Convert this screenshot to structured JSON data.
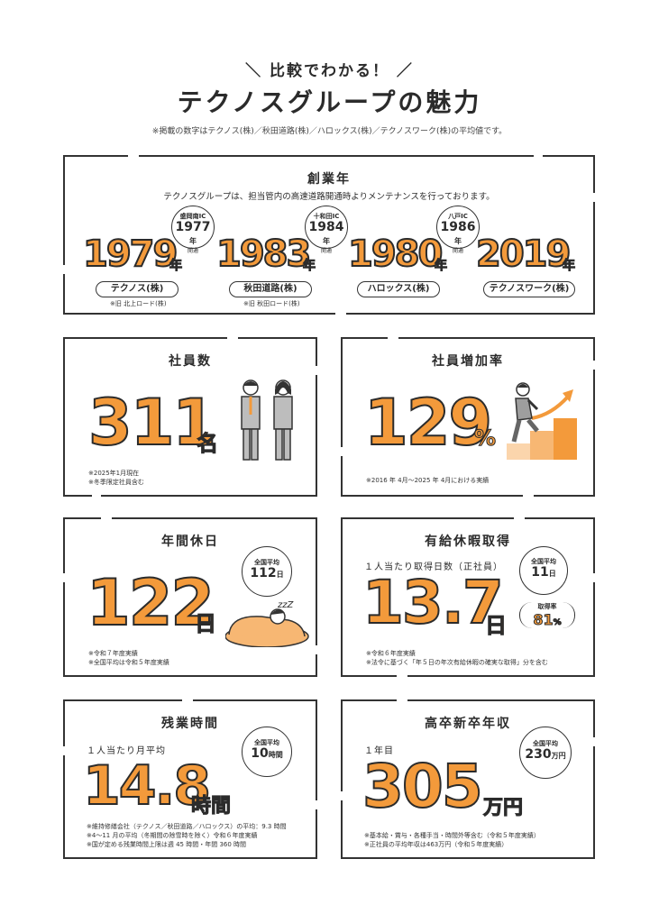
{
  "header": {
    "kicker": "＼ 比較でわかる！ ／",
    "title": "テクノスグループの魅力",
    "note": "※掲載の数字はテクノス(株)／秋田道路(株)／ハロックス(株)／テクノスワーク(株)の平均値です。"
  },
  "founding": {
    "title": "創業年",
    "desc": "テクノスグループは、担当管内の高速道路開通時よりメンテナンスを行っております。",
    "unit": "年",
    "companies": [
      {
        "year": "1979",
        "name": "テクノス(株)",
        "note": "※旧 北上ロード(株)",
        "ic_name": "盛岡南IC",
        "ic_year": "1977",
        "ic_unit": "年",
        "ic_sub": "開通"
      },
      {
        "year": "1983",
        "name": "秋田道路(株)",
        "note": "※旧 秋田ロード(株)",
        "ic_name": "十和田IC",
        "ic_year": "1984",
        "ic_unit": "年",
        "ic_sub": "開通"
      },
      {
        "year": "1980",
        "name": "ハロックス(株)",
        "note": "",
        "ic_name": "八戸IC",
        "ic_year": "1986",
        "ic_unit": "年",
        "ic_sub": "開通"
      },
      {
        "year": "2019",
        "name": "テクノスワーク(株)",
        "note": "",
        "ic_name": "",
        "ic_year": "",
        "ic_unit": "",
        "ic_sub": ""
      }
    ]
  },
  "employees": {
    "title": "社員数",
    "value": "311",
    "unit": "名",
    "notes": [
      "※2025年1月現在",
      "※冬季限定社員含む"
    ]
  },
  "growth": {
    "title": "社員増加率",
    "value": "129",
    "unit": "%",
    "notes": [
      "※2016 年 4月～2025 年 4月における実績"
    ]
  },
  "holidays": {
    "title": "年間休日",
    "value": "122",
    "unit": "日",
    "bubble_label": "全国平均",
    "bubble_value": "112",
    "bubble_unit": "日",
    "sleep": "zzZ",
    "notes": [
      "※令和７年度実績",
      "※全国平均は令和５年度実績"
    ]
  },
  "paid_leave": {
    "title": "有給休暇取得",
    "subtitle": "１人当たり取得日数（正社員）",
    "value": "13.7",
    "unit": "日",
    "bubble_label": "全国平均",
    "bubble_value": "11",
    "bubble_unit": "日",
    "rate_label": "取得率",
    "rate_value": "81",
    "rate_unit": "%",
    "notes": [
      "※令和６年度実績",
      "※法令に基づく「年５日の年次有給休暇の確実な取得」分を含む"
    ]
  },
  "overtime": {
    "title": "残業時間",
    "subtitle": "１人当たり月平均",
    "value": "14.8",
    "unit": "時間",
    "bubble_label": "全国平均",
    "bubble_value": "10",
    "bubble_unit": "時間",
    "notes": [
      "※維持修繕会社（テクノス／秋田道路／ハロックス）の平均：9.3 時間",
      "※4～11 月の平均（冬期間の除雪時を除く）令和６年度実績",
      "※国が定める残業時間上限は週 45 時間・年間 360 時間"
    ]
  },
  "salary": {
    "title": "高卒新卒年収",
    "subtitle": "１年目",
    "value": "305",
    "unit": "万円",
    "bubble_label": "全国平均",
    "bubble_value": "230",
    "bubble_unit": "万円",
    "notes": [
      "※基本給・賞与・各種手当・時間外等含む（令和５年度実績）",
      "※正社員の平均年収は463万円（令和５年度実績）"
    ]
  },
  "colors": {
    "accent": "#f39a3b",
    "ink": "#2b2b2b"
  }
}
